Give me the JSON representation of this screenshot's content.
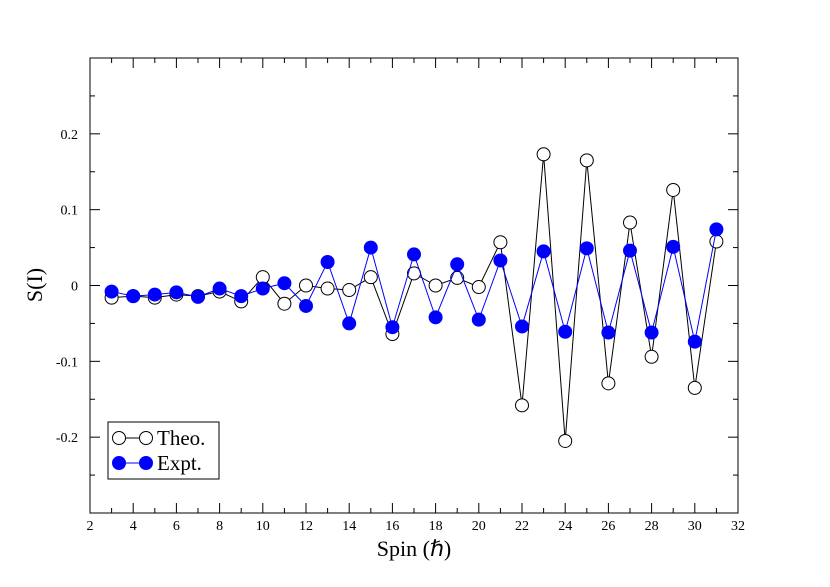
{
  "chart_data": {
    "type": "line",
    "xlabel": "Spin (ℏ)",
    "ylabel": "S(I)",
    "xlim": [
      2,
      32
    ],
    "ylim": [
      -0.3,
      0.3
    ],
    "x_ticks": [
      2,
      4,
      6,
      8,
      10,
      12,
      14,
      16,
      18,
      20,
      22,
      24,
      26,
      28,
      30,
      32
    ],
    "x_tick_labels": [
      "2",
      "4",
      "6",
      "8",
      "10",
      "12",
      "14",
      "16",
      "18",
      "20",
      "22",
      "24",
      "26",
      "28",
      "30",
      "32"
    ],
    "y_ticks": [
      -0.2,
      -0.1,
      0,
      0.1,
      0.2
    ],
    "y_tick_labels": [
      "-0.2",
      "-0.1",
      "0",
      "0.1",
      "0.2"
    ],
    "legend_position": "bottom-left",
    "series": [
      {
        "name": "Theo.",
        "marker": "open-circle",
        "color": "#000000",
        "x": [
          3,
          4,
          5,
          6,
          7,
          8,
          9,
          10,
          11,
          12,
          13,
          14,
          15,
          16,
          17,
          18,
          19,
          20,
          21,
          22,
          23,
          24,
          25,
          26,
          27,
          28,
          29,
          30,
          31
        ],
        "y": [
          -0.016,
          -0.014,
          -0.016,
          -0.012,
          -0.014,
          -0.008,
          -0.021,
          0.011,
          -0.024,
          0.0,
          -0.004,
          -0.006,
          0.011,
          -0.064,
          0.016,
          0.0,
          0.01,
          -0.002,
          0.057,
          -0.158,
          0.173,
          -0.205,
          0.165,
          -0.129,
          0.083,
          -0.094,
          0.126,
          -0.135,
          0.058
        ]
      },
      {
        "name": "Expt.",
        "marker": "filled-circle",
        "color": "#0000ff",
        "x": [
          3,
          4,
          5,
          6,
          7,
          8,
          9,
          10,
          11,
          12,
          13,
          14,
          15,
          16,
          17,
          18,
          19,
          20,
          21,
          22,
          23,
          24,
          25,
          26,
          27,
          28,
          29,
          30,
          31
        ],
        "y": [
          -0.008,
          -0.014,
          -0.012,
          -0.009,
          -0.015,
          -0.004,
          -0.014,
          -0.004,
          0.003,
          -0.027,
          0.031,
          -0.05,
          0.05,
          -0.055,
          0.041,
          -0.042,
          0.028,
          -0.045,
          0.033,
          -0.054,
          0.045,
          -0.061,
          0.049,
          -0.062,
          0.046,
          -0.062,
          0.051,
          -0.074,
          0.074
        ]
      }
    ]
  }
}
